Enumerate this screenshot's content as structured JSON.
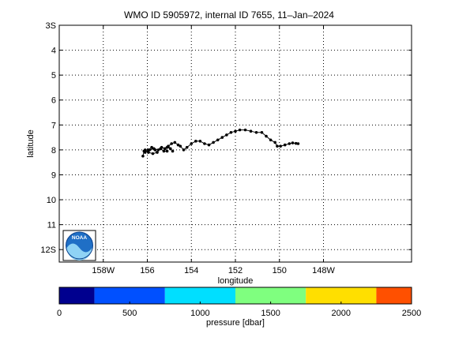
{
  "chart_data": [
    {
      "type": "scatter",
      "title": "WMO ID 5905972, internal ID 7655, 11–Jan–2024",
      "xlabel": "longitude",
      "ylabel": "latitude",
      "xlim": [
        -160,
        -144
      ],
      "ylim": [
        3,
        12.5
      ],
      "x_tick_labels": [
        "158W",
        "156",
        "154",
        "152",
        "150",
        "148W"
      ],
      "y_tick_labels": [
        "3S",
        "4",
        "5",
        "6",
        "7",
        "8",
        "9",
        "10",
        "11",
        "12S"
      ],
      "grid": true,
      "grid_style": "dotted",
      "series": [
        {
          "marker": "dot",
          "color": "#000000",
          "x": [
            -156.2,
            -156.15,
            -156.1,
            -155.95,
            -155.8,
            -155.65,
            -155.55,
            -155.75,
            -155.95,
            -156.1,
            -155.9,
            -155.7,
            -155.5,
            -155.35,
            -155.2,
            -155.1,
            -155.25,
            -155.4,
            -155.1,
            -154.95,
            -154.85,
            -155.05,
            -154.9,
            -154.75,
            -154.6,
            -154.5,
            -154.35,
            -154.2,
            -154.0,
            -153.8,
            -153.6,
            -153.4,
            -153.2,
            -153.0,
            -152.8,
            -152.6,
            -152.4,
            -152.2,
            -152.0,
            -151.8,
            -151.55,
            -151.3,
            -151.05,
            -150.8,
            -150.6,
            -150.4,
            -150.2,
            -150.1,
            -149.95,
            -149.75,
            -149.55,
            -149.4,
            -149.25,
            -149.15
          ],
          "y": [
            8.25,
            8.05,
            8.1,
            8.0,
            7.9,
            8.0,
            8.1,
            8.15,
            8.1,
            8.0,
            8.0,
            7.95,
            8.0,
            7.9,
            7.95,
            8.05,
            8.05,
            7.95,
            7.9,
            7.95,
            8.05,
            7.85,
            7.75,
            7.7,
            7.8,
            7.85,
            8.0,
            7.9,
            7.75,
            7.65,
            7.65,
            7.75,
            7.8,
            7.7,
            7.6,
            7.5,
            7.4,
            7.3,
            7.25,
            7.2,
            7.2,
            7.25,
            7.3,
            7.3,
            7.45,
            7.6,
            7.7,
            7.85,
            7.85,
            7.8,
            7.75,
            7.72,
            7.74,
            7.75
          ]
        }
      ]
    },
    {
      "type": "heatmap",
      "role": "colorbar",
      "xlabel": "pressure [dbar]",
      "xlim": [
        0,
        2500
      ],
      "ticks": [
        0,
        500,
        1000,
        1500,
        2000,
        2500
      ],
      "tick_labels": [
        "0",
        "500",
        "1000",
        "1500",
        "2000",
        "2500"
      ],
      "bands": [
        {
          "from": 0,
          "to": 250,
          "color": "#00008f"
        },
        {
          "from": 250,
          "to": 750,
          "color": "#0050ff"
        },
        {
          "from": 750,
          "to": 1250,
          "color": "#00dfff"
        },
        {
          "from": 1250,
          "to": 1750,
          "color": "#7fff7f"
        },
        {
          "from": 1750,
          "to": 2250,
          "color": "#ffdf00"
        },
        {
          "from": 2250,
          "to": 2500,
          "color": "#ff5000"
        }
      ]
    }
  ],
  "logo": {
    "text": "NOAA"
  }
}
